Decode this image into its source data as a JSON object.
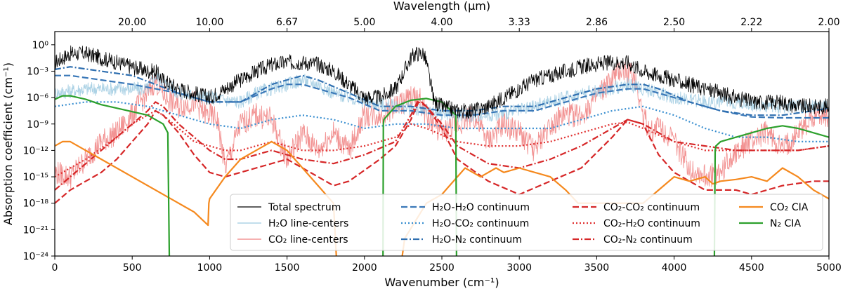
{
  "chart_data": {
    "type": "line",
    "xlabel": "Wavenumber (cm⁻¹)",
    "ylabel": "Absorption coefficient (cm⁻¹)",
    "x2label": "Wavelength (μm)",
    "xlim": [
      0,
      5000
    ],
    "ylim_log10": [
      -24,
      1.5
    ],
    "yscale": "log",
    "x_ticks": [
      0,
      500,
      1000,
      1500,
      2000,
      2500,
      3000,
      3500,
      4000,
      4500,
      5000
    ],
    "x_tick_labels": [
      "0",
      "500",
      "1000",
      "1500",
      "2000",
      "2500",
      "3000",
      "3500",
      "4000",
      "4500",
      "5000"
    ],
    "y_ticks_log10": [
      0,
      -3,
      -6,
      -9,
      -12,
      -15,
      -18,
      -21,
      -24
    ],
    "y_tick_labels": [
      "10⁰",
      "10⁻³",
      "10⁻⁶",
      "10⁻⁹",
      "10⁻¹²",
      "10⁻¹⁵",
      "10⁻¹⁸",
      "10⁻²¹",
      "10⁻²⁴"
    ],
    "top_tick_wavenumbers": [
      500,
      1000,
      1500,
      2000,
      2500,
      3000,
      3500,
      4000,
      4500,
      5000
    ],
    "top_tick_labels": [
      "20.00",
      "10.00",
      "6.67",
      "5.00",
      "4.00",
      "3.33",
      "2.86",
      "2.50",
      "2.22",
      "2.00"
    ],
    "legend_placement": "lower-right",
    "legend_columns": 4,
    "series": [
      {
        "name": "Total spectrum",
        "color": "#000000",
        "dash": "solid",
        "noisy": true,
        "x": [
          0,
          100,
          200,
          300,
          400,
          500,
          600,
          650,
          700,
          800,
          900,
          1000,
          1100,
          1200,
          1300,
          1400,
          1500,
          1600,
          1700,
          1800,
          1900,
          2000,
          2100,
          2200,
          2300,
          2330,
          2380,
          2400,
          2450,
          2500,
          2600,
          2700,
          2800,
          2900,
          3000,
          3100,
          3200,
          3300,
          3400,
          3500,
          3600,
          3700,
          3750,
          3800,
          3900,
          4000,
          4100,
          4200,
          4300,
          4400,
          4500,
          4600,
          4700,
          4800,
          4900,
          5000
        ],
        "y": [
          -2,
          -1,
          -1,
          -1.5,
          -2,
          -2.5,
          -3,
          -3,
          -4,
          -5,
          -5.5,
          -6,
          -5,
          -4,
          -3,
          -2.3,
          -2,
          -2,
          -2.2,
          -3,
          -4.5,
          -6,
          -6,
          -5,
          -1.5,
          -1,
          -1,
          -2,
          -6.5,
          -7,
          -7.5,
          -7.5,
          -7,
          -6,
          -5,
          -4,
          -3.5,
          -3,
          -2.5,
          -2.2,
          -2,
          -2,
          -2.5,
          -3,
          -3.5,
          -4,
          -4.5,
          -5,
          -5.5,
          -6,
          -6.5,
          -6.5,
          -6.5,
          -7,
          -7,
          -7
        ]
      },
      {
        "name": "H₂O line-centers",
        "color": "#9ecae1",
        "dash": "solid",
        "noisy": true,
        "x": [
          0,
          200,
          400,
          600,
          650,
          800,
          1000,
          1200,
          1300,
          1400,
          1500,
          1600,
          1700,
          1800,
          2000,
          2200,
          2400,
          2600,
          2800,
          3000,
          3200,
          3400,
          3600,
          3700,
          3800,
          4000,
          4200,
          4400,
          4600,
          4800,
          5000
        ],
        "y": [
          -5.5,
          -5,
          -5,
          -5,
          -3.5,
          -5.5,
          -6,
          -6.5,
          -5.5,
          -5,
          -4.5,
          -4,
          -4.5,
          -5.5,
          -6.5,
          -7,
          -7.5,
          -8,
          -8,
          -7.5,
          -6.5,
          -5.5,
          -5,
          -4.5,
          -5,
          -6,
          -6.5,
          -6.5,
          -7,
          -7,
          -7
        ]
      },
      {
        "name": "CO₂ line-centers",
        "color": "#f08080",
        "dash": "solid",
        "noisy": true,
        "x": [
          0,
          100,
          200,
          300,
          400,
          500,
          550,
          600,
          650,
          680,
          720,
          800,
          900,
          980,
          1000,
          1050,
          1100,
          1200,
          1300,
          1400,
          1500,
          1600,
          1700,
          1800,
          1900,
          2000,
          2100,
          2200,
          2300,
          2350,
          2400,
          2500,
          2600,
          2700,
          2800,
          2900,
          3000,
          3100,
          3200,
          3300,
          3400,
          3500,
          3600,
          3650,
          3700,
          3750,
          3800,
          3850,
          3900,
          4000,
          4100,
          4200,
          4300,
          4400,
          4500,
          4600,
          4700,
          4800,
          4900,
          5000
        ],
        "y": [
          -14.5,
          -15,
          -13,
          -11,
          -10,
          -8,
          -6.5,
          -5.5,
          -4,
          -5,
          -6,
          -7,
          -6.5,
          -8,
          -8,
          -8.5,
          -14,
          -9,
          -8,
          -8.5,
          -13,
          -10,
          -12,
          -10,
          -12,
          -8,
          -8,
          -7,
          -6,
          -6,
          -8,
          -10,
          -9,
          -8,
          -11,
          -9,
          -10,
          -12,
          -9,
          -8,
          -8,
          -6,
          -4,
          -3,
          -3,
          -4,
          -8,
          -10,
          -9,
          -11,
          -14,
          -15,
          -14.5,
          -12,
          -11,
          -10,
          -12,
          -10,
          -8,
          -8
        ]
      },
      {
        "name": "H₂O-H₂O continuum",
        "color": "#3a78b8",
        "dash": "dashed",
        "noisy": false,
        "x": [
          0,
          100,
          300,
          500,
          650,
          800,
          1000,
          1200,
          1400,
          1500,
          1600,
          1700,
          1900,
          2100,
          2300,
          2500,
          2700,
          2900,
          3100,
          3300,
          3500,
          3700,
          3800,
          3900,
          4100,
          4300,
          4500,
          4700,
          4900,
          5000
        ],
        "y": [
          -3.5,
          -3.5,
          -4,
          -4.5,
          -5,
          -5.5,
          -6.5,
          -6.5,
          -5,
          -4.5,
          -4.5,
          -5,
          -6,
          -7.5,
          -7.5,
          -8,
          -8,
          -7.5,
          -7.5,
          -6.5,
          -5.5,
          -5,
          -5,
          -5.5,
          -6.5,
          -7.5,
          -8.2,
          -8.3,
          -8.3,
          -8.3
        ]
      },
      {
        "name": "H₂O-CO₂ continuum",
        "color": "#3a8fd0",
        "dash": "dotted",
        "noisy": false,
        "x": [
          0,
          200,
          400,
          600,
          800,
          1000,
          1200,
          1400,
          1600,
          1800,
          2000,
          2200,
          2400,
          2600,
          2800,
          3000,
          3200,
          3400,
          3600,
          3800,
          4000,
          4200,
          4400,
          4600,
          4800,
          5000
        ],
        "y": [
          -7,
          -6.5,
          -6.5,
          -7,
          -8,
          -9,
          -9.5,
          -8.5,
          -8,
          -8.5,
          -9.5,
          -9,
          -9,
          -9.5,
          -9.5,
          -9.5,
          -9.5,
          -8.5,
          -7.5,
          -7,
          -8,
          -9.5,
          -10.5,
          -10.5,
          -11,
          -11
        ]
      },
      {
        "name": "H₂O-N₂ continuum",
        "color": "#2f6fb0",
        "dash": "dashdot",
        "noisy": false,
        "x": [
          0,
          100,
          300,
          500,
          650,
          800,
          1000,
          1200,
          1400,
          1500,
          1600,
          1700,
          1900,
          2100,
          2300,
          2500,
          2700,
          2900,
          3100,
          3300,
          3500,
          3700,
          3800,
          3900,
          4100,
          4300,
          4500,
          4700,
          4900,
          5000
        ],
        "y": [
          -2.8,
          -2.5,
          -3,
          -3.5,
          -4.5,
          -5.5,
          -6.5,
          -6.5,
          -4.5,
          -4,
          -3.5,
          -4,
          -5.5,
          -7,
          -7,
          -7.5,
          -7.5,
          -7,
          -7,
          -6,
          -5,
          -4.5,
          -4.5,
          -5,
          -6.5,
          -7.5,
          -8,
          -8,
          -7.5,
          -7.2
        ]
      },
      {
        "name": "CO₂-CO₂ continuum",
        "color": "#d62728",
        "dash": "dashed",
        "noisy": false,
        "x": [
          0,
          100,
          200,
          300,
          400,
          500,
          600,
          650,
          700,
          800,
          900,
          1000,
          1100,
          1200,
          1300,
          1400,
          1500,
          1600,
          1800,
          1900,
          2100,
          2200,
          2300,
          2350,
          2400,
          2500,
          2600,
          2800,
          3000,
          3200,
          3400,
          3600,
          3700,
          3800,
          3900,
          4000,
          4200,
          4400,
          4500,
          4700,
          4900,
          5000
        ],
        "y": [
          -18,
          -16.5,
          -15.5,
          -14.5,
          -13,
          -11,
          -9,
          -7.5,
          -8,
          -10,
          -12.5,
          -14.5,
          -15,
          -14.5,
          -14,
          -13.5,
          -13,
          -14,
          -16,
          -15.5,
          -13,
          -11.5,
          -8.5,
          -6.5,
          -7,
          -9.5,
          -13,
          -15.5,
          -17,
          -15.5,
          -14,
          -10.5,
          -8.5,
          -9,
          -12.5,
          -14.5,
          -16.5,
          -16.5,
          -17,
          -16,
          -15.5,
          -15.5
        ]
      },
      {
        "name": "CO₂-H₂O continuum",
        "color": "#e03030",
        "dash": "dotted",
        "noisy": false,
        "x": [
          0,
          200,
          400,
          500,
          600,
          650,
          700,
          800,
          900,
          1000,
          1100,
          1200,
          1300,
          1400,
          1600,
          1800,
          2000,
          2200,
          2300,
          2400,
          2600,
          2800,
          3000,
          3200,
          3400,
          3600,
          3700,
          3800,
          4000,
          4200,
          4400,
          4600,
          4800,
          5000
        ],
        "y": [
          -15,
          -13,
          -10.5,
          -9,
          -8,
          -7.5,
          -8,
          -9.5,
          -11,
          -11.5,
          -12,
          -12,
          -11.5,
          -11,
          -12,
          -12,
          -11.5,
          -10.5,
          -9,
          -9.5,
          -11,
          -11.5,
          -11.5,
          -11,
          -10,
          -9,
          -8.8,
          -9.5,
          -11,
          -12,
          -12,
          -12,
          -12,
          -11.5
        ]
      },
      {
        "name": "CO₂-N₂ continuum",
        "color": "#d62728",
        "dash": "dashdot",
        "noisy": false,
        "x": [
          0,
          100,
          200,
          300,
          400,
          500,
          600,
          650,
          700,
          800,
          900,
          1000,
          1100,
          1200,
          1300,
          1400,
          1500,
          1600,
          1800,
          2000,
          2200,
          2300,
          2350,
          2400,
          2500,
          2600,
          2800,
          3000,
          3200,
          3400,
          3600,
          3700,
          3800,
          3900,
          4000,
          4200,
          4400,
          4600,
          4800,
          5000
        ],
        "y": [
          -16.5,
          -15,
          -13.5,
          -12,
          -10.5,
          -9,
          -7.5,
          -6.5,
          -7,
          -9,
          -10.5,
          -12,
          -13,
          -13,
          -12.5,
          -12,
          -12.5,
          -13,
          -13.5,
          -12.5,
          -11,
          -8,
          -6.2,
          -7,
          -9,
          -11.5,
          -13.5,
          -14,
          -13,
          -11.5,
          -9.5,
          -8.5,
          -9,
          -10,
          -11,
          -11.5,
          -12,
          -12,
          -12,
          -11.5
        ]
      },
      {
        "name": "CO₂ CIA",
        "color": "#f5891e",
        "dash": "solid",
        "noisy": false,
        "x": [
          0,
          50,
          100,
          300,
          500,
          700,
          900,
          990,
          995,
          1000,
          1100,
          1200,
          1300,
          1400,
          1500,
          1600,
          1700,
          1800,
          1820,
          2240,
          2260,
          2400,
          2500,
          2600,
          2650,
          2700,
          2750,
          2800,
          2850,
          2900,
          3000,
          3100,
          3200,
          3300,
          3380,
          3800,
          3900,
          4000,
          4100,
          4200,
          4250,
          4300,
          4400,
          4500,
          4600,
          4700,
          4800,
          4900,
          5000
        ],
        "y": [
          -11.5,
          -11,
          -11,
          -13,
          -15,
          -17,
          -19,
          -20.5,
          -18,
          -17.5,
          -15,
          -13,
          -12,
          -11,
          -12,
          -14,
          -16,
          -18,
          -24.5,
          -24.5,
          -22,
          -18,
          -17,
          -15,
          -14,
          -14.5,
          -15,
          -14.5,
          -14,
          -14.5,
          -14,
          -14.5,
          -15,
          -16.5,
          -18,
          -18,
          -16.5,
          -15,
          -15.5,
          -15,
          -15.8,
          -15.5,
          -15.3,
          -15,
          -15.5,
          -14,
          -15,
          -16.5,
          -17.5
        ]
      },
      {
        "name": "N₂ CIA",
        "color": "#2ca02c",
        "dash": "solid",
        "noisy": false,
        "x": [
          0,
          50,
          100,
          200,
          300,
          400,
          500,
          600,
          700,
          730,
          740,
          742,
          2120,
          2122,
          2125,
          2200,
          2300,
          2400,
          2500,
          2590,
          2595,
          2600,
          4260,
          4265,
          4270,
          4300,
          4400,
          4500,
          4600,
          4700,
          4800,
          4900,
          5000
        ],
        "y": [
          -6.2,
          -5.8,
          -5.8,
          -6.2,
          -6.8,
          -7.2,
          -7.6,
          -8,
          -9,
          -10,
          -24.5,
          -24.5,
          -24.5,
          -9,
          -8.5,
          -7,
          -6.3,
          -6.1,
          -6.5,
          -8,
          -24.5,
          -24.5,
          -24.5,
          -12,
          -11.5,
          -11,
          -10.5,
          -10,
          -9.5,
          -9.2,
          -9.5,
          -10,
          -10.5
        ]
      }
    ]
  }
}
